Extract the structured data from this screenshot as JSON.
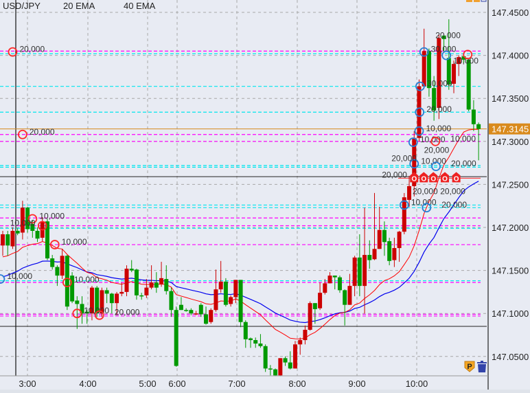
{
  "legend": {
    "symbol": "USD/JPY",
    "ema_fast": "20 EMA",
    "ema_slow": "40 EMA"
  },
  "colors": {
    "background": "#e8ebf3",
    "up_candle": "#cc0000",
    "down_candle": "#009900",
    "ema_fast": "#ff0000",
    "ema_slow": "#0000ee",
    "current_price": "#d98a1c",
    "sell_marker": "#ff2a2a",
    "buy_marker": "#2a7fd4",
    "level_magenta": "#ff00ff",
    "level_cyan": "#00e5ee"
  },
  "chart_data": {
    "type": "candlestick",
    "ylim": [
      147.025,
      147.468
    ],
    "price_ticks": [
      "147.4500",
      "147.4000",
      "147.3500",
      "147.3000",
      "147.2500",
      "147.2000",
      "147.1500",
      "147.1000",
      "147.0500"
    ],
    "time_ticks": [
      "3:00",
      "4:00",
      "5:00",
      "6:00",
      "7:00",
      "8:00",
      "9:00",
      "10:00"
    ],
    "current_price": "147.3145",
    "ema_seed": {
      "ema20": 147.163,
      "ema40": 147.14
    },
    "candles": [
      [
        147.179,
        147.196,
        147.167,
        147.192
      ],
      [
        147.192,
        147.196,
        147.167,
        147.179
      ],
      [
        147.178,
        147.2,
        147.175,
        147.196
      ],
      [
        147.196,
        147.199,
        147.191,
        147.193
      ],
      [
        147.194,
        147.231,
        147.186,
        147.223
      ],
      [
        147.223,
        147.224,
        147.194,
        147.198
      ],
      [
        147.204,
        147.208,
        147.188,
        147.196
      ],
      [
        147.196,
        147.2,
        147.183,
        147.187
      ],
      [
        147.188,
        147.212,
        147.184,
        147.207
      ],
      [
        147.207,
        147.21,
        147.162,
        147.164
      ],
      [
        147.164,
        147.168,
        147.151,
        147.154
      ],
      [
        147.154,
        147.156,
        147.132,
        147.144
      ],
      [
        147.144,
        147.175,
        147.14,
        147.167
      ],
      [
        147.167,
        147.168,
        147.104,
        147.108
      ],
      [
        147.144,
        147.148,
        147.112,
        147.114
      ],
      [
        147.115,
        147.12,
        147.082,
        147.111
      ],
      [
        147.111,
        147.12,
        147.088,
        147.1
      ],
      [
        147.102,
        147.104,
        147.088,
        147.1
      ],
      [
        147.1,
        147.132,
        147.092,
        147.13
      ],
      [
        147.13,
        147.132,
        147.096,
        147.1
      ],
      [
        147.1,
        147.13,
        147.096,
        147.127
      ],
      [
        147.127,
        147.13,
        147.112,
        147.123
      ],
      [
        147.123,
        147.124,
        147.1,
        147.112
      ],
      [
        147.112,
        147.125,
        147.098,
        147.123
      ],
      [
        147.123,
        147.136,
        147.12,
        147.125
      ],
      [
        147.125,
        147.156,
        147.12,
        147.152
      ],
      [
        147.152,
        147.162,
        147.148,
        147.15
      ],
      [
        147.151,
        147.152,
        147.116,
        147.121
      ],
      [
        147.121,
        147.124,
        147.116,
        147.12
      ],
      [
        147.121,
        147.14,
        147.118,
        147.13
      ],
      [
        147.13,
        147.156,
        147.128,
        147.136
      ],
      [
        147.136,
        147.148,
        147.124,
        147.13
      ],
      [
        147.134,
        147.16,
        147.131,
        147.141
      ],
      [
        147.14,
        147.156,
        147.122,
        147.126
      ],
      [
        147.126,
        147.13,
        147.096,
        147.104
      ],
      [
        147.104,
        147.108,
        147.038,
        147.039
      ],
      [
        147.11,
        147.119,
        147.104,
        147.104
      ],
      [
        147.104,
        147.106,
        147.102,
        147.103
      ],
      [
        147.104,
        147.106,
        147.098,
        147.1
      ],
      [
        147.1,
        147.103,
        147.098,
        147.1
      ],
      [
        147.11,
        147.112,
        147.096,
        147.099
      ],
      [
        147.099,
        147.108,
        147.087,
        147.088
      ],
      [
        147.09,
        147.106,
        147.088,
        147.104
      ],
      [
        147.104,
        147.151,
        147.102,
        147.128
      ],
      [
        147.128,
        147.161,
        147.124,
        147.137
      ],
      [
        147.137,
        147.141,
        147.108,
        147.11
      ],
      [
        147.111,
        147.121,
        147.108,
        147.119
      ],
      [
        147.119,
        147.139,
        147.112,
        147.139
      ],
      [
        147.139,
        147.139,
        147.084,
        147.09
      ],
      [
        147.09,
        147.092,
        147.06,
        147.07
      ],
      [
        147.071,
        147.072,
        147.06,
        147.069
      ],
      [
        147.069,
        147.072,
        147.06,
        147.065
      ],
      [
        147.065,
        147.076,
        147.06,
        147.062
      ],
      [
        147.062,
        147.064,
        147.032,
        147.036
      ],
      [
        147.036,
        147.04,
        147.028,
        147.035
      ],
      [
        147.035,
        147.036,
        147.027,
        147.028
      ],
      [
        147.028,
        147.048,
        147.027,
        147.048
      ],
      [
        147.048,
        147.05,
        147.039,
        147.043
      ],
      [
        147.043,
        147.056,
        147.035,
        147.036
      ],
      [
        147.036,
        147.068,
        147.036,
        147.064
      ],
      [
        147.064,
        147.072,
        147.052,
        147.069
      ],
      [
        147.069,
        147.086,
        147.064,
        147.081
      ],
      [
        147.081,
        147.114,
        147.08,
        147.112
      ],
      [
        147.112,
        147.112,
        147.088,
        147.105
      ],
      [
        147.106,
        147.136,
        147.104,
        147.124
      ],
      [
        147.124,
        147.14,
        147.122,
        147.135
      ],
      [
        147.135,
        147.148,
        147.135,
        147.144
      ],
      [
        147.144,
        147.144,
        147.128,
        147.142
      ],
      [
        147.142,
        147.144,
        147.124,
        147.127
      ],
      [
        147.127,
        147.128,
        147.086,
        147.11
      ],
      [
        147.11,
        147.146,
        147.11,
        147.132
      ],
      [
        147.132,
        147.167,
        147.12,
        147.165
      ],
      [
        147.165,
        147.192,
        147.12,
        147.132
      ],
      [
        147.132,
        147.223,
        147.1,
        147.168
      ],
      [
        147.168,
        147.185,
        147.152,
        147.162
      ],
      [
        147.163,
        147.24,
        147.162,
        147.175
      ],
      [
        147.175,
        147.224,
        147.175,
        147.197
      ],
      [
        147.197,
        147.207,
        147.167,
        147.183
      ],
      [
        147.184,
        147.188,
        147.156,
        147.161
      ],
      [
        147.162,
        147.188,
        147.154,
        147.176
      ],
      [
        147.176,
        147.196,
        147.16,
        147.195
      ],
      [
        147.195,
        147.24,
        147.192,
        147.235
      ],
      [
        147.232,
        147.26,
        147.224,
        147.248
      ],
      [
        147.248,
        147.312,
        147.236,
        147.304
      ],
      [
        147.304,
        147.372,
        147.3,
        147.364
      ],
      [
        147.364,
        147.431,
        147.362,
        147.405
      ],
      [
        147.405,
        147.408,
        147.352,
        147.362
      ],
      [
        147.362,
        147.376,
        147.324,
        147.336
      ],
      [
        147.339,
        147.424,
        147.326,
        147.42
      ],
      [
        147.423,
        147.424,
        147.404,
        147.419
      ],
      [
        147.397,
        147.442,
        147.36,
        147.366
      ],
      [
        147.367,
        147.394,
        147.356,
        147.39
      ],
      [
        147.39,
        147.4,
        147.376,
        147.398
      ],
      [
        147.399,
        147.402,
        147.391,
        147.395
      ],
      [
        147.395,
        147.396,
        147.335,
        147.337
      ],
      [
        147.337,
        147.348,
        147.312,
        147.32
      ],
      [
        147.32,
        147.322,
        147.278,
        147.3145
      ]
    ],
    "levels": [
      {
        "price": 147.405,
        "color": "magenta"
      },
      {
        "price": 147.402,
        "color": "cyan"
      },
      {
        "price": 147.364,
        "color": "cyan"
      },
      {
        "price": 147.334,
        "color": "cyan"
      },
      {
        "price": 147.308,
        "color": "magenta"
      },
      {
        "price": 147.3,
        "color": "magenta"
      },
      {
        "price": 147.272,
        "color": "cyan"
      },
      {
        "price": 147.27,
        "color": "cyan"
      },
      {
        "price": 147.226,
        "color": "cyan"
      },
      {
        "price": 147.223,
        "color": "cyan"
      },
      {
        "price": 147.211,
        "color": "magenta"
      },
      {
        "price": 147.202,
        "color": "magenta"
      },
      {
        "price": 147.199,
        "color": "cyan"
      },
      {
        "price": 147.18,
        "color": "magenta"
      },
      {
        "price": 147.138,
        "color": "cyan"
      },
      {
        "price": 147.136,
        "color": "magenta"
      },
      {
        "price": 147.099,
        "color": "magenta"
      },
      {
        "price": 147.097,
        "color": "magenta"
      }
    ],
    "solid_lines": [
      147.259,
      147.085
    ],
    "markers": [
      {
        "idx": 2,
        "price": 147.404,
        "side": "sell",
        "qty": "20,000"
      },
      {
        "idx": 4,
        "price": 147.308,
        "side": "sell",
        "qty": "20,000"
      },
      {
        "idx": 6,
        "price": 147.21,
        "side": "sell",
        "qty": "10,000"
      },
      {
        "idx": 8,
        "price": 147.202,
        "side": "sell",
        "qty": "10,000"
      },
      {
        "idx": 10.5,
        "price": 147.18,
        "side": "sell",
        "qty": "10,000"
      },
      {
        "idx": 13,
        "price": 147.136,
        "side": "sell",
        "qty": "10,000"
      },
      {
        "idx": 15,
        "price": 147.1,
        "side": "sell",
        "qty": "10,000"
      },
      {
        "idx": 19.5,
        "price": 147.098,
        "side": "sell",
        "qty": "20,000"
      },
      {
        "idx": -0.5,
        "price": 147.14,
        "side": "buy",
        "qty": "10,000"
      },
      {
        "idx": 81,
        "price": 147.226,
        "side": "buy",
        "qty": "10,000"
      },
      {
        "idx": 85.5,
        "price": 147.223,
        "side": "buy",
        "qty": "20,000"
      },
      {
        "idx": 82.8,
        "price": 147.299,
        "side": "buy",
        "qty": "10,000"
      },
      {
        "idx": 83,
        "price": 147.274,
        "side": "buy",
        "qty": "10,000"
      },
      {
        "idx": 84,
        "price": 147.312,
        "side": "buy",
        "qty": "10,000"
      },
      {
        "idx": 84.1,
        "price": 147.334,
        "side": "buy",
        "qty": "20,000"
      },
      {
        "idx": 84.2,
        "price": 147.364,
        "side": "buy",
        "qty": "30,000"
      },
      {
        "idx": 85,
        "price": 147.404,
        "side": "buy",
        "qty": "30,000"
      },
      {
        "idx": 89.5,
        "price": 147.4,
        "side": "buy",
        "qty": "10,000"
      },
      {
        "idx": 93.8,
        "price": 147.401,
        "side": "sell",
        "qty": "20,000"
      },
      {
        "idx": 87.3,
        "price": 147.3,
        "side": "sell",
        "qty": "10,000"
      },
      {
        "idx": 87.4,
        "price": 147.271,
        "side": "buy",
        "qty": "20,000"
      }
    ],
    "orders": [
      {
        "idx": 83,
        "price": 147.258,
        "qty": "20,000"
      },
      {
        "idx": 84,
        "price": 147.258,
        "qty": "20,000"
      },
      {
        "idx": 85.5,
        "price": 147.258,
        "qty": "20,000"
      },
      {
        "idx": 89.2,
        "price": 147.258,
        "qty": "20,000"
      },
      {
        "idx": 91.5,
        "price": 147.258,
        "qty": "20,000"
      }
    ],
    "order_icon_letter": "O"
  },
  "toolbar": {
    "position_icon_letter": "P"
  }
}
